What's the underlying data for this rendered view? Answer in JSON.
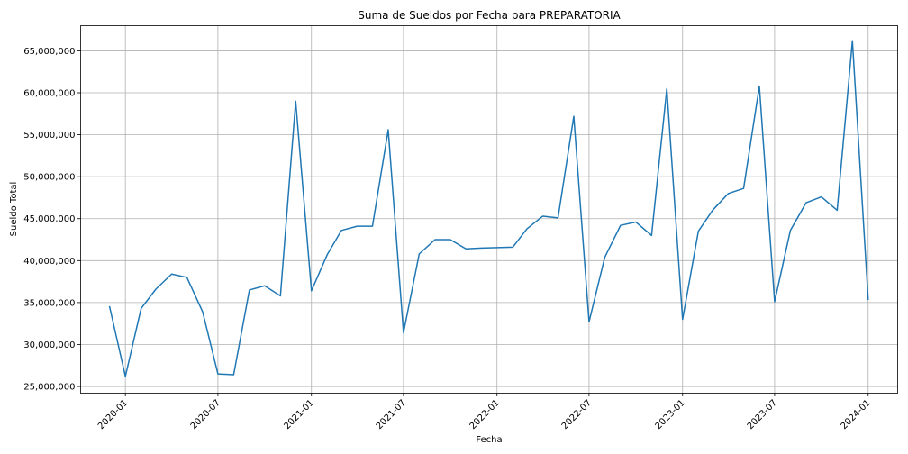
{
  "chart_data": {
    "type": "line",
    "title": "Suma de Sueldos por Fecha para PREPARATORIA",
    "xlabel": "Fecha",
    "ylabel": "Sueldo Total",
    "grid": true,
    "legend": "none",
    "xlim": [
      "2019-10-05",
      "2024-02-28"
    ],
    "ylim": [
      24200000,
      68000000
    ],
    "x_ticks": [
      "2020-01",
      "2020-07",
      "2021-01",
      "2021-07",
      "2022-01",
      "2022-07",
      "2023-01",
      "2023-07",
      "2024-01"
    ],
    "y_ticks": [
      25000000,
      30000000,
      35000000,
      40000000,
      45000000,
      50000000,
      55000000,
      60000000,
      65000000
    ],
    "y_tick_labels": [
      "25,000,000",
      "30,000,000",
      "35,000,000",
      "40,000,000",
      "45,000,000",
      "50,000,000",
      "55,000,000",
      "60,000,000",
      "65,000,000"
    ],
    "series": [
      {
        "color": "#1f77b4",
        "x": [
          "2019-12-01",
          "2020-01-01",
          "2020-02-01",
          "2020-03-01",
          "2020-04-01",
          "2020-05-01",
          "2020-06-01",
          "2020-07-01",
          "2020-08-01",
          "2020-09-01",
          "2020-10-01",
          "2020-11-01",
          "2020-12-01",
          "2021-01-01",
          "2021-02-01",
          "2021-03-01",
          "2021-04-01",
          "2021-05-01",
          "2021-06-01",
          "2021-07-01",
          "2021-08-01",
          "2021-09-01",
          "2021-10-01",
          "2021-11-01",
          "2021-12-01",
          "2022-01-01",
          "2022-02-01",
          "2022-03-01",
          "2022-04-01",
          "2022-05-01",
          "2022-06-01",
          "2022-07-01",
          "2022-08-01",
          "2022-09-01",
          "2022-10-01",
          "2022-11-01",
          "2022-12-01",
          "2023-01-01",
          "2023-02-01",
          "2023-03-01",
          "2023-04-01",
          "2023-05-01",
          "2023-06-01",
          "2023-07-01",
          "2023-08-01",
          "2023-09-01",
          "2023-10-01",
          "2023-11-01",
          "2023-12-01",
          "2024-01-01"
        ],
        "y": [
          34500000,
          26200000,
          34300000,
          36600000,
          38400000,
          38000000,
          33900000,
          26500000,
          26400000,
          36500000,
          37000000,
          35800000,
          59000000,
          36400000,
          40700000,
          43600000,
          44100000,
          44100000,
          55600000,
          31400000,
          40800000,
          42500000,
          42500000,
          41400000,
          41500000,
          41550000,
          41600000,
          43800000,
          45300000,
          45100000,
          57200000,
          32700000,
          40400000,
          44200000,
          44600000,
          43000000,
          60500000,
          33000000,
          43500000,
          46000000,
          48000000,
          48600000,
          60800000,
          35100000,
          43600000,
          46900000,
          47600000,
          46000000,
          66200000,
          35400000
        ]
      }
    ]
  }
}
